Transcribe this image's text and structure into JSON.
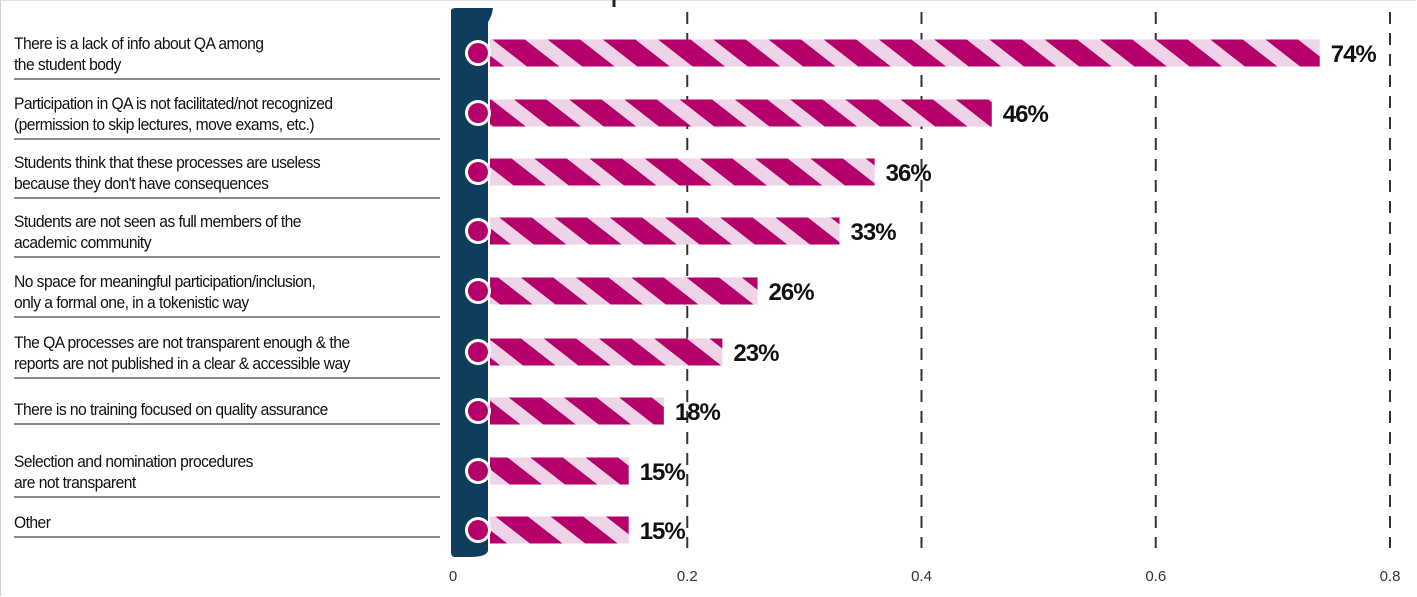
{
  "chart_data": {
    "type": "bar",
    "orientation": "horizontal",
    "title": "",
    "xlabel": "",
    "ylabel": "",
    "xlim": [
      0,
      0.8
    ],
    "x_ticks": [
      "0",
      "0.2",
      "0.4",
      "0.6",
      "0.8"
    ],
    "grid": "vertical dashed",
    "categories": [
      [
        "There is a lack of info about QA among",
        "the student body"
      ],
      [
        "Participation in QA is not facilitated/not recognized",
        "(permission to skip lectures, move exams, etc.)"
      ],
      [
        "Students think that these processes are useless",
        "because they don't have consequences"
      ],
      [
        "Students are not seen as full members of the",
        "academic community"
      ],
      [
        "No space for meaningful participation/inclusion,",
        "only a formal one, in a tokenistic way"
      ],
      [
        "The QA processes are not transparent enough & the",
        "reports are not published in a clear & accessible way"
      ],
      [
        "There is no training focused on quality assurance"
      ],
      [
        "Selection and nomination procedures",
        "are not transparent"
      ],
      [
        "Other"
      ]
    ],
    "values": [
      0.74,
      0.46,
      0.36,
      0.33,
      0.26,
      0.23,
      0.18,
      0.15,
      0.15
    ],
    "value_labels": [
      "74%",
      "46%",
      "36%",
      "33%",
      "26%",
      "23%",
      "18%",
      "15%",
      "15%"
    ],
    "colors": {
      "bar": "#b5006b",
      "bar_light": "#efd3e7",
      "axis_band": "#0f3d5e",
      "grid": "#333333"
    }
  }
}
